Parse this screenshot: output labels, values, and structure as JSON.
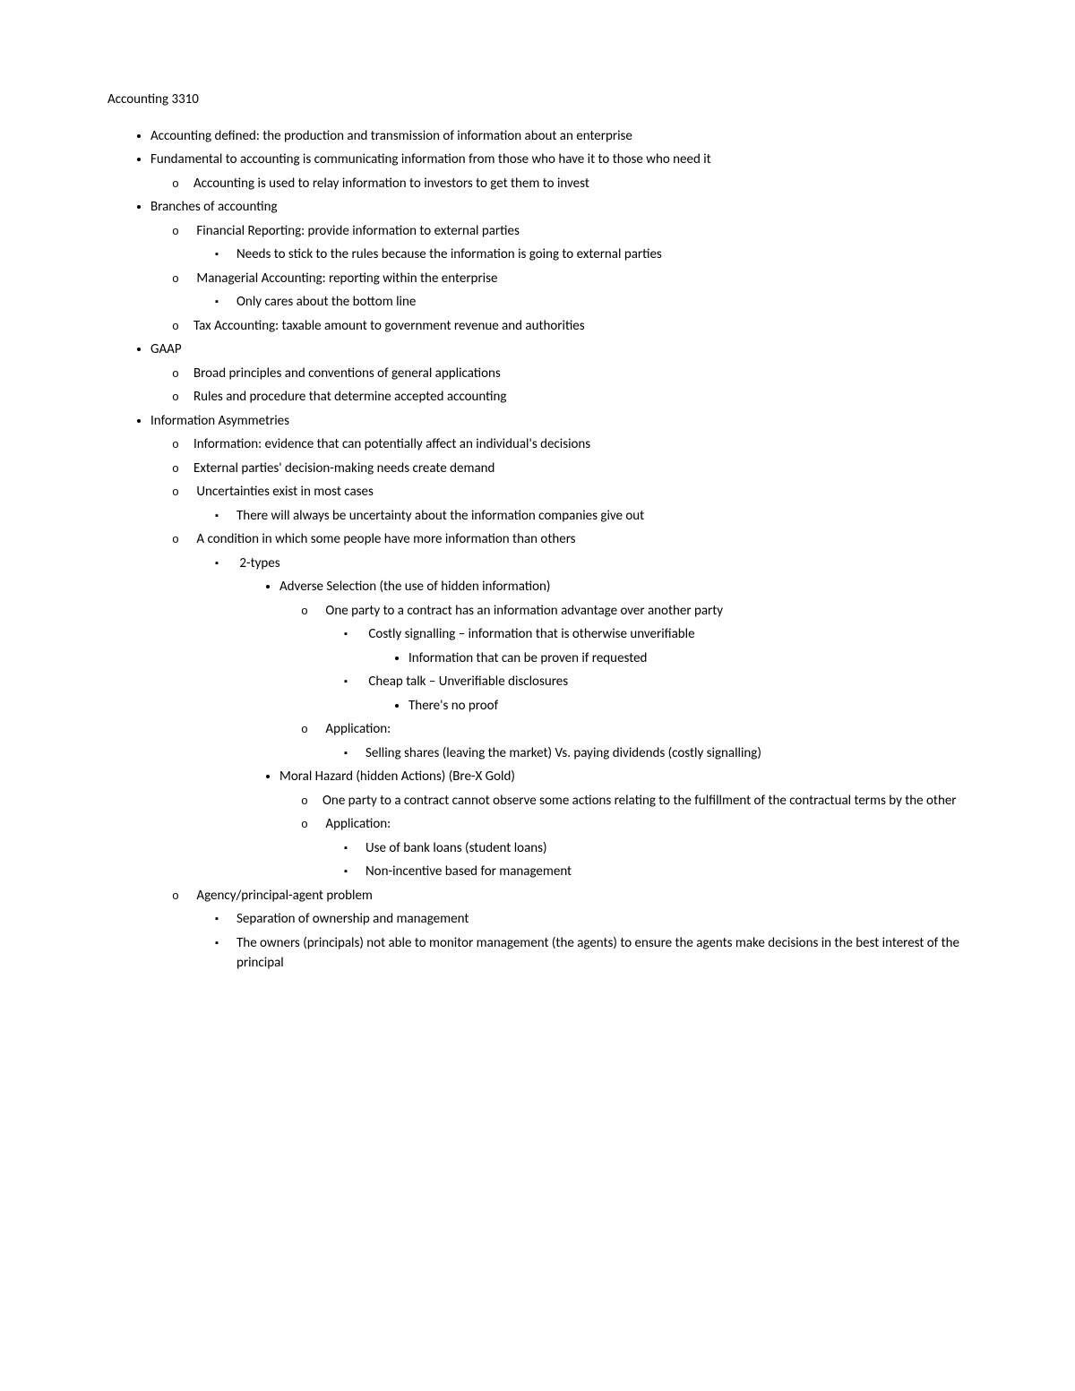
{
  "title": "Accounting 3310",
  "items": {
    "l1_0": "Accounting defined: the production and transmission of information about an enterprise",
    "l1_1": "Fundamental to accounting is communicating information from those who have it to those who need it",
    "l1_1_0": "Accounting is used to relay information to investors to get them to invest",
    "l1_2": "Branches of accounting",
    "l1_2_0": "Financial Reporting: provide information to external parties",
    "l1_2_0_0": "Needs to stick to the rules because the information is going to external parties",
    "l1_2_1": "Managerial Accounting: reporting within the enterprise",
    "l1_2_1_0": "Only cares about the bottom line",
    "l1_2_2": "Tax Accounting: taxable amount to government revenue and authorities",
    "l1_3": "GAAP",
    "l1_3_0": "Broad principles and conventions of general applications",
    "l1_3_1": "Rules and procedure that determine accepted accounting",
    "l1_4": "Information Asymmetries",
    "l1_4_0": "Information: evidence that can potentially affect an individual's decisions",
    "l1_4_1": "External parties' decision-making needs create demand",
    "l1_4_2": "Uncertainties exist in most cases",
    "l1_4_2_0": "There will always be uncertainty about the information companies give out",
    "l1_4_3": "A condition in which some people have more information than others",
    "l1_4_3_0": "2-types",
    "l1_4_3_0_0": "Adverse Selection (the use of hidden information)",
    "l1_4_3_0_0_0": "One party to a contract has an information advantage over another party",
    "l1_4_3_0_0_0_0": "Costly signalling – information that is otherwise unverifiable",
    "l1_4_3_0_0_0_0_0": "Information that can be proven if requested",
    "l1_4_3_0_0_0_1": "Cheap talk – Unverifiable disclosures",
    "l1_4_3_0_0_0_1_0": "There's no proof",
    "l1_4_3_0_0_1": "Application:",
    "l1_4_3_0_0_1_0": "Selling shares (leaving the market) Vs. paying dividends (costly signalling)",
    "l1_4_3_0_1": "Moral Hazard (hidden Actions) (Bre-X Gold)",
    "l1_4_3_0_1_0": "One party to a contract cannot observe some actions relating to the fulfillment of the contractual terms by the other",
    "l1_4_3_0_1_1": "Application:",
    "l1_4_3_0_1_1_0": "Use of bank loans (student loans)",
    "l1_4_3_0_1_1_1": "Non-incentive based for management",
    "l1_4_4": "Agency/principal-agent problem",
    "l1_4_4_0": "Separation of ownership and management",
    "l1_4_4_1": "The owners (principals) not able to monitor management (the agents) to ensure the agents make decisions in the best interest of the principal"
  }
}
